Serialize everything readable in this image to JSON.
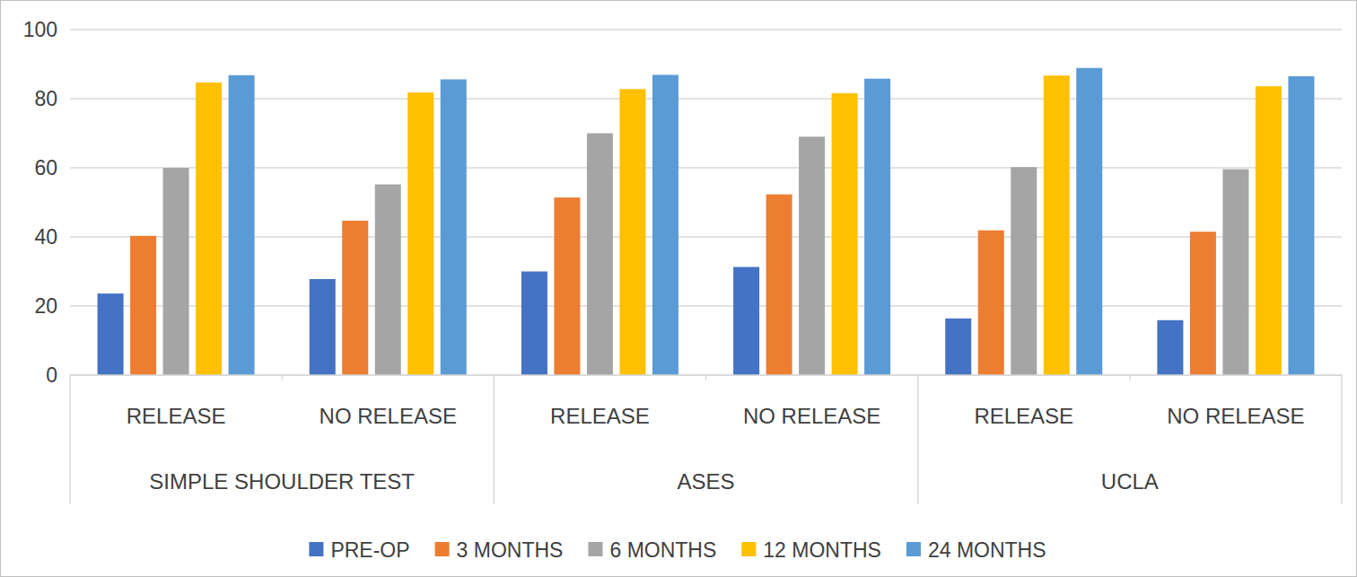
{
  "chart_data": {
    "type": "bar",
    "categories": [
      "RELEASE",
      "NO RELEASE",
      "RELEASE",
      "NO RELEASE",
      "RELEASE",
      "NO RELEASE"
    ],
    "category_groups": [
      "SIMPLE SHOULDER TEST",
      "ASES",
      "UCLA"
    ],
    "series": [
      {
        "name": "PRE-OP",
        "color": "#4472c4",
        "values": [
          23.6,
          27.8,
          30,
          31.3,
          16.4,
          15.9
        ]
      },
      {
        "name": "3 MONTHS",
        "color": "#ed7d31",
        "values": [
          40.3,
          44.7,
          51.4,
          52.3,
          41.9,
          41.5
        ]
      },
      {
        "name": "6 MONTHS",
        "color": "#a5a5a5",
        "values": [
          60,
          55.2,
          70,
          69,
          60.2,
          59.6
        ]
      },
      {
        "name": "12 MONTHS",
        "color": "#ffc000",
        "values": [
          84.7,
          81.8,
          82.8,
          81.6,
          86.7,
          83.6
        ]
      },
      {
        "name": "24 MONTHS",
        "color": "#5b9bd5",
        "values": [
          86.8,
          85.6,
          86.9,
          85.8,
          88.9,
          86.5
        ]
      }
    ],
    "ylim": [
      0,
      100
    ],
    "yticks": [
      0,
      20,
      40,
      60,
      80,
      100
    ],
    "grid": true,
    "legend": "bottom"
  }
}
